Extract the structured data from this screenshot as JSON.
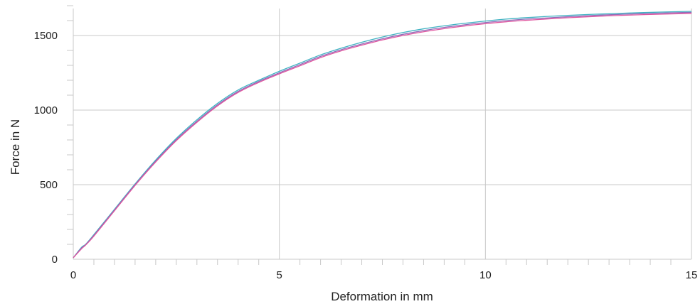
{
  "chart_data": {
    "type": "line",
    "title": "",
    "xlabel": "Deformation in mm",
    "ylabel": "Force in N",
    "xlim": [
      0,
      15
    ],
    "ylim": [
      0,
      1700
    ],
    "xticks": [
      0,
      5,
      10,
      15
    ],
    "xtick_labels": [
      "0",
      "5",
      "10",
      "15"
    ],
    "yticks": [
      0,
      500,
      1000,
      1500
    ],
    "ytick_labels": [
      "0",
      "500",
      "1000",
      "1500"
    ],
    "grid": true,
    "legend": "none",
    "series": [
      {
        "color": "#3fb2c2",
        "x": [
          0,
          0.2,
          0.3,
          0.5,
          1.0,
          1.5,
          2.0,
          2.5,
          3.0,
          3.5,
          4.0,
          4.5,
          5.0,
          5.5,
          6.0,
          6.5,
          7.0,
          7.5,
          8.0,
          8.5,
          9.0,
          9.5,
          10.0,
          10.5,
          11.0,
          11.5,
          12.0,
          12.5,
          13.0,
          13.5,
          14.0,
          14.5,
          15.0
        ],
        "y": [
          10,
          80,
          100,
          165,
          335,
          505,
          665,
          810,
          935,
          1045,
          1135,
          1200,
          1260,
          1315,
          1370,
          1415,
          1455,
          1490,
          1520,
          1545,
          1565,
          1582,
          1597,
          1610,
          1620,
          1628,
          1635,
          1641,
          1646,
          1651,
          1655,
          1659,
          1662
        ]
      },
      {
        "color": "#8e6bb8",
        "x": [
          0,
          0.2,
          0.3,
          0.5,
          1.0,
          1.5,
          2.0,
          2.5,
          3.0,
          3.5,
          4.0,
          4.5,
          5.0,
          5.5,
          6.0,
          6.5,
          7.0,
          7.5,
          8.0,
          8.5,
          9.0,
          9.5,
          10.0,
          10.5,
          11.0,
          11.5,
          12.0,
          12.5,
          13.0,
          13.5,
          14.0,
          14.5,
          15.0
        ],
        "y": [
          10,
          75,
          98,
          160,
          330,
          500,
          658,
          802,
          925,
          1035,
          1125,
          1192,
          1250,
          1305,
          1360,
          1405,
          1443,
          1478,
          1508,
          1533,
          1554,
          1572,
          1587,
          1600,
          1610,
          1618,
          1626,
          1633,
          1639,
          1644,
          1648,
          1652,
          1655
        ]
      },
      {
        "color": "#e0569f",
        "x": [
          0,
          0.2,
          0.3,
          0.5,
          1.0,
          1.5,
          2.0,
          2.5,
          3.0,
          3.5,
          4.0,
          4.5,
          5.0,
          5.5,
          6.0,
          6.5,
          7.0,
          7.5,
          8.0,
          8.5,
          9.0,
          9.5,
          10.0,
          10.5,
          11.0,
          11.5,
          12.0,
          12.5,
          13.0,
          13.5,
          14.0,
          14.5,
          15.0
        ],
        "y": [
          10,
          70,
          95,
          155,
          325,
          495,
          652,
          795,
          918,
          1028,
          1118,
          1185,
          1243,
          1297,
          1352,
          1397,
          1435,
          1470,
          1500,
          1525,
          1546,
          1564,
          1579,
          1592,
          1602,
          1611,
          1619,
          1626,
          1632,
          1637,
          1641,
          1645,
          1648
        ]
      }
    ]
  },
  "colors": {
    "grid": "#c8c8c8",
    "minor_tick": "#c8c8c8",
    "text": "#222222"
  }
}
